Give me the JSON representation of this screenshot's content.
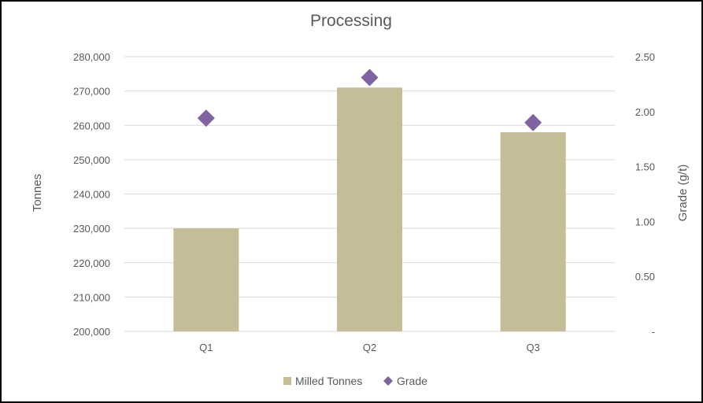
{
  "chart_data": {
    "type": "bar",
    "title": "Processing",
    "categories": [
      "Q1",
      "Q2",
      "Q3"
    ],
    "series": [
      {
        "name": "Milled Tonnes",
        "kind": "bar",
        "axis": "left",
        "color": "#C4BD97",
        "values": [
          230000,
          271000,
          258000
        ]
      },
      {
        "name": "Grade",
        "kind": "scatter",
        "marker": "diamond",
        "axis": "right",
        "color": "#8064A2",
        "values": [
          1.94,
          2.31,
          1.9
        ]
      }
    ],
    "ylabel": "Tonnes",
    "y2label": "Grade (g/t)",
    "ylim": [
      200000,
      280000
    ],
    "y2lim": [
      0,
      2.5
    ],
    "yticks": [
      "200,000",
      "210,000",
      "220,000",
      "230,000",
      "240,000",
      "250,000",
      "260,000",
      "270,000",
      "280,000"
    ],
    "y2ticks": [
      "-",
      "0.50",
      "1.00",
      "1.50",
      "2.00",
      "2.50"
    ],
    "grid": true,
    "legend": "bottom",
    "gridColor": "#D9D9D9",
    "textColor": "#595959"
  }
}
